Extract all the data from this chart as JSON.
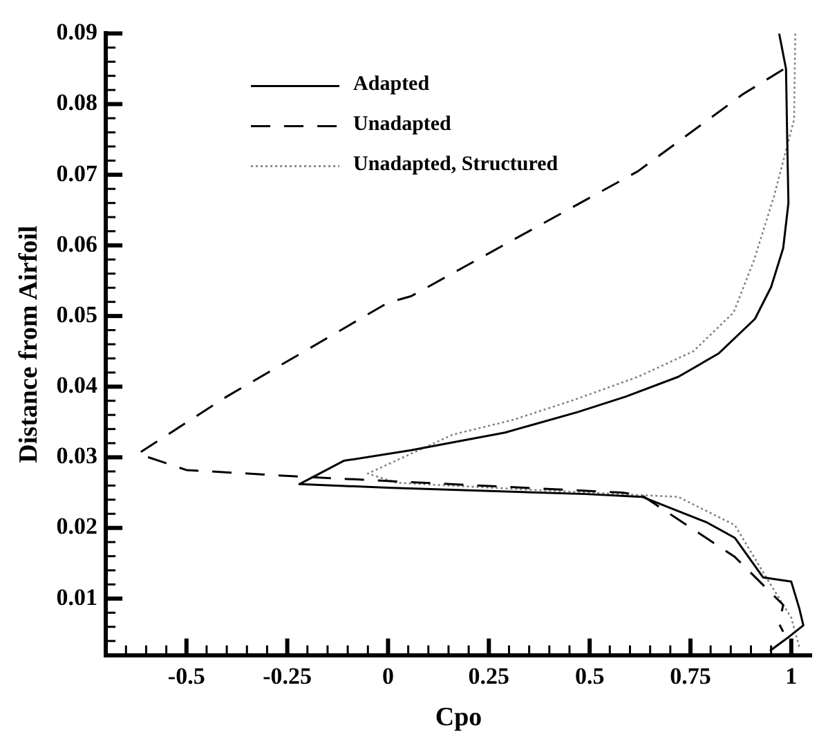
{
  "chart_data": {
    "type": "line",
    "xlabel": "Cpo",
    "ylabel": "Distance from Airfoil",
    "xlim": [
      -0.7,
      1.05
    ],
    "ylim": [
      0.002,
      0.09
    ],
    "xticks": [
      {
        "value": -0.65,
        "label": null
      },
      {
        "value": -0.6,
        "label": null
      },
      {
        "value": -0.55,
        "label": null
      },
      -0.5,
      {
        "value": -0.45,
        "label": null
      },
      {
        "value": -0.4,
        "label": null
      },
      {
        "value": -0.35,
        "label": null
      },
      {
        "value": -0.3,
        "label": null
      },
      -0.25,
      {
        "value": -0.2,
        "label": null
      },
      {
        "value": -0.15,
        "label": null
      },
      {
        "value": -0.1,
        "label": null
      },
      {
        "value": -0.05,
        "label": null
      },
      0,
      {
        "value": 0.05,
        "label": null
      },
      {
        "value": 0.1,
        "label": null
      },
      {
        "value": 0.15,
        "label": null
      },
      {
        "value": 0.2,
        "label": null
      },
      0.25,
      {
        "value": 0.3,
        "label": null
      },
      {
        "value": 0.35,
        "label": null
      },
      {
        "value": 0.4,
        "label": null
      },
      {
        "value": 0.45,
        "label": null
      },
      0.5,
      {
        "value": 0.55,
        "label": null
      },
      {
        "value": 0.6,
        "label": null
      },
      {
        "value": 0.65,
        "label": null
      },
      {
        "value": 0.7,
        "label": null
      },
      0.75,
      {
        "value": 0.8,
        "label": null
      },
      {
        "value": 0.85,
        "label": null
      },
      {
        "value": 0.9,
        "label": null
      },
      {
        "value": 0.95,
        "label": null
      },
      1
    ],
    "yticks": [
      {
        "value": 0.004,
        "label": null
      },
      {
        "value": 0.006,
        "label": null
      },
      {
        "value": 0.008,
        "label": null
      },
      0.01,
      {
        "value": 0.012,
        "label": null
      },
      {
        "value": 0.014,
        "label": null
      },
      {
        "value": 0.016,
        "label": null
      },
      {
        "value": 0.018,
        "label": null
      },
      0.02,
      {
        "value": 0.022,
        "label": null
      },
      {
        "value": 0.024,
        "label": null
      },
      {
        "value": 0.026,
        "label": null
      },
      {
        "value": 0.028,
        "label": null
      },
      0.03,
      {
        "value": 0.032,
        "label": null
      },
      {
        "value": 0.034,
        "label": null
      },
      {
        "value": 0.036,
        "label": null
      },
      {
        "value": 0.038,
        "label": null
      },
      0.04,
      {
        "value": 0.042,
        "label": null
      },
      {
        "value": 0.044,
        "label": null
      },
      {
        "value": 0.046,
        "label": null
      },
      {
        "value": 0.048,
        "label": null
      },
      0.05,
      {
        "value": 0.052,
        "label": null
      },
      {
        "value": 0.054,
        "label": null
      },
      {
        "value": 0.056,
        "label": null
      },
      {
        "value": 0.058,
        "label": null
      },
      0.06,
      {
        "value": 0.062,
        "label": null
      },
      {
        "value": 0.064,
        "label": null
      },
      {
        "value": 0.066,
        "label": null
      },
      {
        "value": 0.068,
        "label": null
      },
      0.07,
      {
        "value": 0.072,
        "label": null
      },
      {
        "value": 0.074,
        "label": null
      },
      {
        "value": 0.076,
        "label": null
      },
      {
        "value": 0.078,
        "label": null
      },
      0.08,
      {
        "value": 0.082,
        "label": null
      },
      {
        "value": 0.084,
        "label": null
      },
      {
        "value": 0.086,
        "label": null
      },
      {
        "value": 0.088,
        "label": null
      },
      0.09
    ],
    "grid": false,
    "legend": "top",
    "marker": "none",
    "series": [
      {
        "name": "Adapted",
        "color": "#000000",
        "line_style": "solid",
        "x": [
          0.97,
          0.987,
          0.99,
          0.993,
          0.98,
          0.95,
          0.91,
          0.82,
          0.72,
          0.59,
          0.47,
          0.29,
          0.057,
          -0.11,
          -0.22,
          0,
          0.49,
          0.63,
          0.79,
          0.86,
          0.93,
          1.0,
          1.02,
          1.03,
          0.99,
          0.947
        ],
        "values": [
          0.09,
          0.085,
          0.075,
          0.066,
          0.0596,
          0.0541,
          0.0496,
          0.0447,
          0.0414,
          0.0386,
          0.0364,
          0.0335,
          0.031,
          0.0295,
          0.0262,
          0.0257,
          0.0248,
          0.0244,
          0.0208,
          0.0186,
          0.013,
          0.0124,
          0.0086,
          0.0062,
          0.0044,
          0.0026
        ]
      },
      {
        "name": "Unadapted",
        "color": "#000000",
        "line_style": "dashed",
        "x": [
          0.98,
          0.88,
          0.62,
          0.33,
          0.057,
          0,
          -0.4,
          -0.62,
          -0.5,
          -0.23,
          0.58,
          0.63,
          0.86,
          0.98,
          0.97,
          0.98
        ],
        "values": [
          0.0849,
          0.0814,
          0.0705,
          0.0614,
          0.0528,
          0.0519,
          0.0386,
          0.0305,
          0.0282,
          0.0273,
          0.025,
          0.0246,
          0.0159,
          0.0091,
          0.0064,
          0.0053
        ]
      },
      {
        "name": "Unadapted, Structured",
        "color": "#808080",
        "line_style": "dotted",
        "x": [
          1.01,
          1.007,
          0.99,
          0.957,
          0.907,
          0.857,
          0.757,
          0.62,
          0.46,
          0.31,
          0.16,
          -0.05,
          0.02,
          0.39,
          0.72,
          0.73,
          0.86,
          0.94,
          1.0,
          1.02
        ],
        "values": [
          0.09,
          0.0778,
          0.0741,
          0.0669,
          0.0578,
          0.0505,
          0.045,
          0.0414,
          0.0381,
          0.0353,
          0.0332,
          0.0277,
          0.0264,
          0.0253,
          0.0244,
          0.0241,
          0.0204,
          0.0128,
          0.0073,
          0.0031
        ]
      }
    ]
  }
}
